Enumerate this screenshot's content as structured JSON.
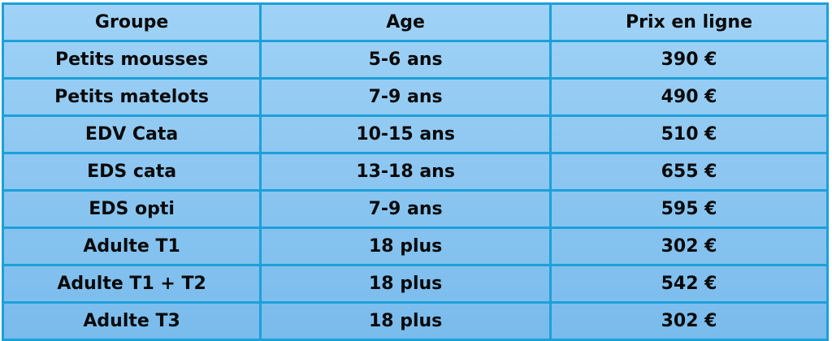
{
  "table": {
    "headers": [
      "Groupe",
      "Age",
      "Prix en ligne"
    ],
    "rows": [
      [
        "Petits mousses",
        "5-6 ans",
        "390 €"
      ],
      [
        "Petits matelots",
        "7-9 ans",
        "490 €"
      ],
      [
        "EDV Cata",
        "10-15 ans",
        "510 €"
      ],
      [
        "EDS cata",
        "13-18 ans",
        "655 €"
      ],
      [
        "EDS opti",
        "7-9 ans",
        "595 €"
      ],
      [
        "Adulte T1",
        "18 plus",
        "302 €"
      ],
      [
        "Adulte T1 + T2",
        "18 plus",
        "542 €"
      ],
      [
        "Adulte T3",
        "18 plus",
        "302 €"
      ]
    ]
  },
  "colors": {
    "border": "#1da0d9",
    "fill_top": "#a0d2f6",
    "fill_bottom": "#79bbec"
  }
}
